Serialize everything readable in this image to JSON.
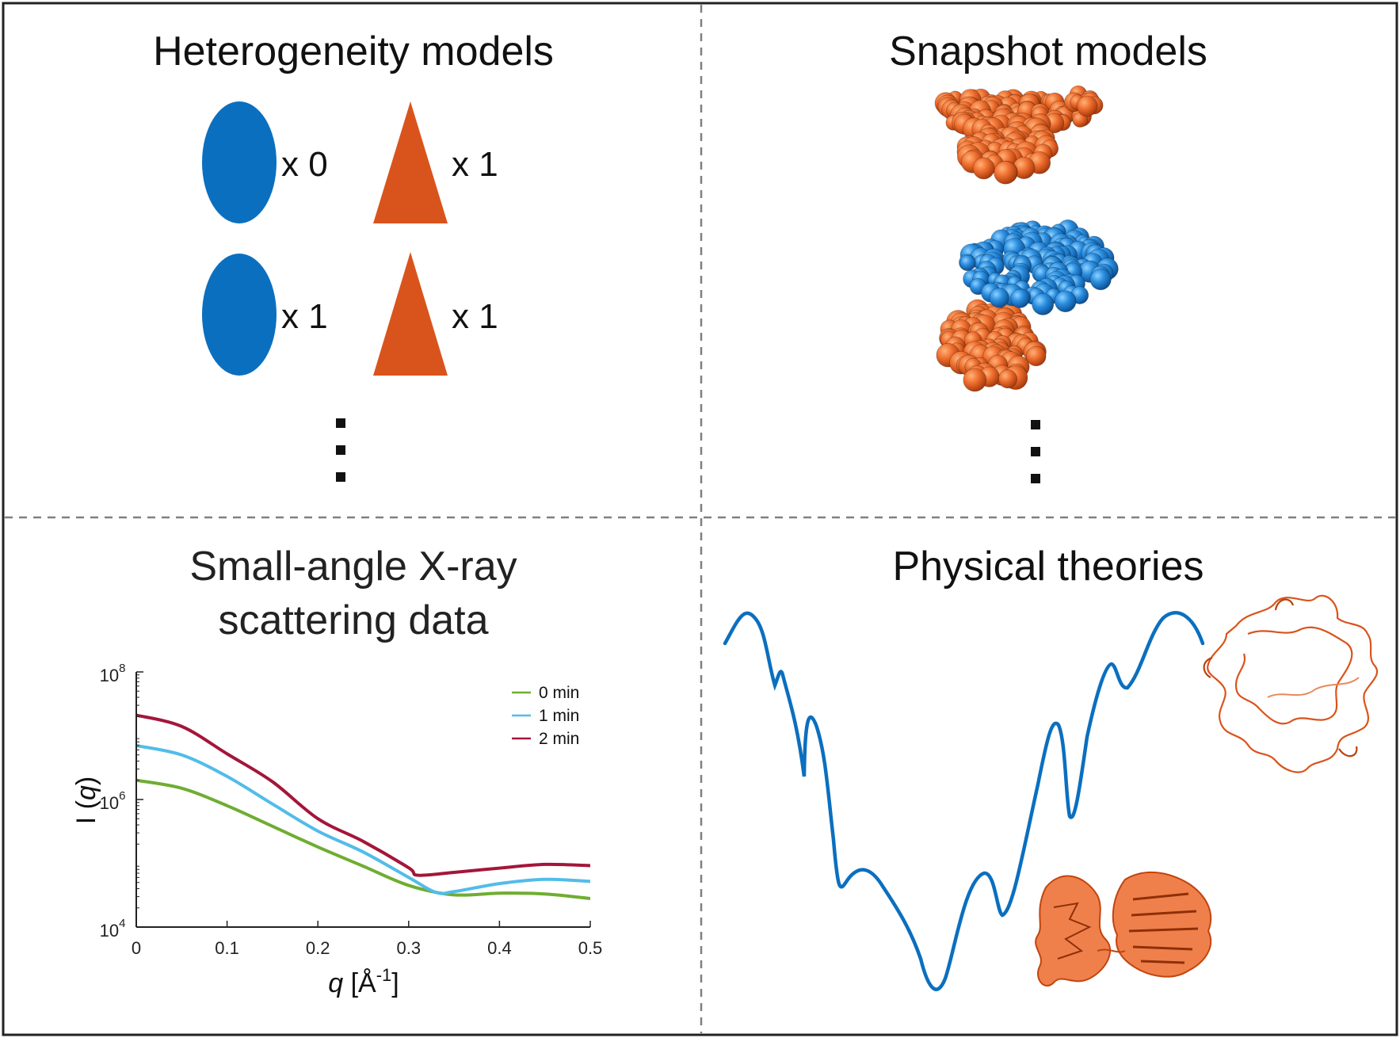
{
  "colors": {
    "blue": "#0b6fbf",
    "orange": "#d9541c",
    "green": "#6fad32",
    "light_blue": "#52bce9",
    "dark_red": "#a3163a",
    "divider": "#808080",
    "text": "#222222"
  },
  "panels": {
    "heterogeneity": {
      "title": "Heterogeneity models",
      "rows": [
        {
          "ellipse_count": "x 0",
          "triangle_count": "x 1"
        },
        {
          "ellipse_count": "x 1",
          "triangle_count": "x 1"
        }
      ]
    },
    "snapshot": {
      "title": "Snapshot models"
    },
    "saxs": {
      "title_line1": "Small-angle X-ray",
      "title_line2": "scattering data"
    },
    "physical": {
      "title": "Physical theories"
    }
  },
  "chart_data": {
    "type": "line",
    "title": "",
    "xlabel_symbol": "q",
    "xlabel_unit": " [Å",
    "xlabel_exp": "-1",
    "xlabel_close": "]",
    "ylabel_prefix": "I (",
    "ylabel_symbol": "q",
    "ylabel_suffix": ")",
    "y_scale": "log",
    "xlim": [
      0,
      0.5
    ],
    "ylim": [
      10000,
      100000000
    ],
    "x_ticks": [
      {
        "value": 0,
        "label": "0"
      },
      {
        "value": 0.1,
        "label": "0.1"
      },
      {
        "value": 0.2,
        "label": "0.2"
      },
      {
        "value": 0.3,
        "label": "0.3"
      },
      {
        "value": 0.4,
        "label": "0.4"
      },
      {
        "value": 0.5,
        "label": "0.5"
      }
    ],
    "y_ticks": [
      {
        "value": 100000000,
        "base": "10",
        "exp": "8"
      },
      {
        "value": 1000000,
        "base": "10",
        "exp": "6"
      },
      {
        "value": 10000,
        "base": "10",
        "exp": "4"
      }
    ],
    "legend_position": "top-right",
    "series": [
      {
        "name": "0 min",
        "color": "#6fad32",
        "x": [
          0,
          0.05,
          0.1,
          0.15,
          0.2,
          0.25,
          0.3,
          0.35,
          0.4,
          0.45,
          0.5
        ],
        "y": [
          2000000,
          1500000,
          800000,
          380000,
          180000,
          90000,
          45000,
          32000,
          34000,
          33000,
          28000
        ]
      },
      {
        "name": "1 min",
        "color": "#52bce9",
        "x": [
          0,
          0.05,
          0.1,
          0.15,
          0.2,
          0.25,
          0.3,
          0.33,
          0.35,
          0.4,
          0.45,
          0.5
        ],
        "y": [
          7000000,
          5000000,
          2300000,
          850000,
          320000,
          150000,
          60000,
          35000,
          36000,
          48000,
          56000,
          52000
        ]
      },
      {
        "name": "2 min",
        "color": "#a3163a",
        "x": [
          0,
          0.05,
          0.1,
          0.15,
          0.2,
          0.25,
          0.3,
          0.31,
          0.35,
          0.4,
          0.45,
          0.5
        ],
        "y": [
          21000000,
          14000000,
          5200000,
          1900000,
          500000,
          220000,
          85000,
          65000,
          72000,
          84000,
          96000,
          92000
        ]
      }
    ]
  }
}
